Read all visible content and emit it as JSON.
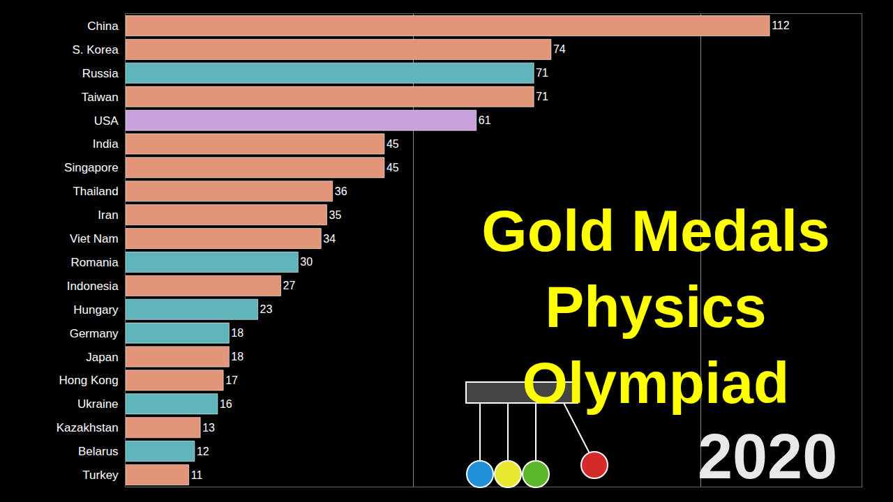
{
  "chart_data": {
    "type": "bar",
    "orientation": "horizontal",
    "title": "Gold Medals Physics Olympiad",
    "annotations": [
      "2020"
    ],
    "categories": [
      "China",
      "S. Korea",
      "Russia",
      "Taiwan",
      "USA",
      "India",
      "Singapore",
      "Thailand",
      "Iran",
      "Viet Nam",
      "Romania",
      "Indonesia",
      "Hungary",
      "Germany",
      "Japan",
      "Hong Kong",
      "Ukraine",
      "Kazakhstan",
      "Belarus",
      "Turkey"
    ],
    "values": [
      112,
      74,
      71,
      71,
      61,
      45,
      45,
      36,
      35,
      34,
      30,
      27,
      23,
      18,
      18,
      17,
      16,
      13,
      12,
      11
    ],
    "colors": [
      "#e3957a",
      "#e3957a",
      "#5fb4ba",
      "#e3957a",
      "#c8a0dc",
      "#e3957a",
      "#e3957a",
      "#e3957a",
      "#e3957a",
      "#e3957a",
      "#5fb4ba",
      "#e3957a",
      "#5fb4ba",
      "#5fb4ba",
      "#e3957a",
      "#e3957a",
      "#5fb4ba",
      "#e3957a",
      "#5fb4ba",
      "#e3957a"
    ],
    "xlim": [
      0,
      128
    ],
    "xticks": [
      50,
      100
    ],
    "grid": true,
    "tick_labels": "y",
    "data_labels": true
  }
}
